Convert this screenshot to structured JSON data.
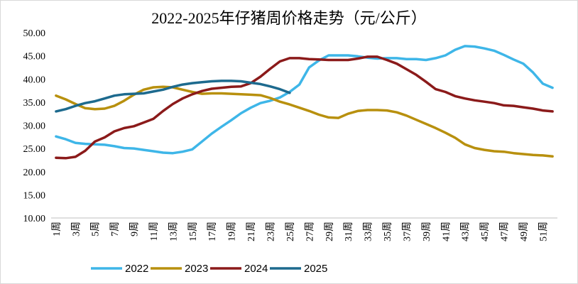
{
  "chart_data": {
    "type": "line",
    "title": "2022-2025年仔猪周价格走势（元/公斤）",
    "categories": [
      "1周",
      null,
      "3周",
      null,
      "5周",
      null,
      "7周",
      null,
      "9周",
      null,
      "11周",
      null,
      "13周",
      null,
      "15周",
      null,
      "17周",
      null,
      "19周",
      null,
      "21周",
      null,
      "23周",
      null,
      "25周",
      null,
      "27周",
      null,
      "29周",
      null,
      "31周",
      null,
      "33周",
      null,
      "35周",
      null,
      "37周",
      null,
      "39周",
      null,
      "41周",
      null,
      "43周",
      null,
      "45周",
      null,
      "47周",
      null,
      "49周",
      null,
      "51周",
      null
    ],
    "series": [
      {
        "name": "2022",
        "color": "#3eb6e8",
        "values": [
          27.6,
          27,
          26.2,
          26,
          25.9,
          25.8,
          25.5,
          25.1,
          25,
          24.7,
          24.4,
          24.1,
          24,
          24.3,
          24.8,
          26.5,
          28.2,
          29.7,
          31.1,
          32.6,
          33.8,
          34.8,
          35.3,
          36,
          37.2,
          38.8,
          42.5,
          44,
          45.1,
          45.1,
          45.1,
          44.9,
          44.6,
          44.4,
          44.5,
          44.5,
          44.3,
          44.3,
          44.1,
          44.5,
          45.1,
          46.3,
          47.1,
          47,
          46.6,
          46.1,
          45.2,
          44.2,
          43.3,
          41.4,
          39,
          38.1
        ]
      },
      {
        "name": "2023",
        "color": "#b8900e",
        "values": [
          36.4,
          35.6,
          34.6,
          33.7,
          33.5,
          33.6,
          34.2,
          35.3,
          36.6,
          37.7,
          38.2,
          38.3,
          38.2,
          37.7,
          37.2,
          36.8,
          36.9,
          36.9,
          36.8,
          36.7,
          36.6,
          36.5,
          35.9,
          35.1,
          34.5,
          33.8,
          33.1,
          32.3,
          31.7,
          31.6,
          32.5,
          33.1,
          33.3,
          33.3,
          33.2,
          32.8,
          32.1,
          31.2,
          30.3,
          29.4,
          28.4,
          27.3,
          25.9,
          25.1,
          24.7,
          24.4,
          24.3,
          24,
          23.8,
          23.6,
          23.5,
          23.3
        ]
      },
      {
        "name": "2024",
        "color": "#8b1a1a",
        "values": [
          23,
          22.9,
          23.2,
          24.5,
          26.5,
          27.4,
          28.7,
          29.4,
          29.8,
          30.6,
          31.4,
          33.1,
          34.6,
          35.8,
          36.7,
          37.4,
          37.9,
          38.1,
          38.3,
          38.4,
          39.1,
          40.5,
          42.2,
          43.8,
          44.5,
          44.5,
          44.3,
          44.2,
          44.1,
          44.1,
          44.1,
          44.4,
          44.8,
          44.8,
          44.1,
          43.3,
          42.1,
          40.9,
          39.4,
          37.8,
          37.2,
          36.3,
          35.8,
          35.4,
          35.1,
          34.8,
          34.3,
          34.2,
          33.9,
          33.6,
          33.2,
          33
        ]
      },
      {
        "name": "2025",
        "color": "#1d6a8e",
        "values": [
          33,
          33.5,
          34.2,
          34.8,
          35.2,
          35.8,
          36.4,
          36.7,
          36.8,
          36.9,
          37.3,
          37.7,
          38.3,
          38.8,
          39.1,
          39.3,
          39.5,
          39.6,
          39.6,
          39.5,
          39.2,
          38.9,
          38.4,
          37.8,
          37,
          null,
          null,
          null,
          null,
          null,
          null,
          null,
          null,
          null,
          null,
          null,
          null,
          null,
          null,
          null,
          null,
          null,
          null,
          null,
          null,
          null,
          null,
          null,
          null,
          null,
          null,
          null
        ]
      }
    ],
    "ylim": [
      10,
      50
    ],
    "yticks": [
      {
        "value": 10,
        "label": "10.00"
      },
      {
        "value": 15,
        "label": "15.00"
      },
      {
        "value": 20,
        "label": "20.00"
      },
      {
        "value": 25,
        "label": "25.00"
      },
      {
        "value": 30,
        "label": "30.00"
      },
      {
        "value": 35,
        "label": "35.00"
      },
      {
        "value": 40,
        "label": "40.00"
      },
      {
        "value": 45,
        "label": "45.00"
      },
      {
        "value": 50,
        "label": "50.00"
      }
    ],
    "grid": false
  }
}
